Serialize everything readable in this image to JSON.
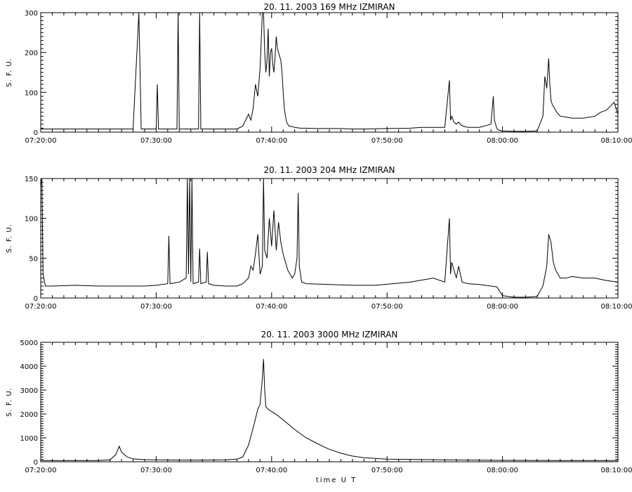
{
  "chart_data": [
    {
      "type": "line",
      "title": "20.  11.  2003    169 MHz    IZMIRAN",
      "ylabel": "S. F. U.",
      "xlabel": "",
      "x_range": [
        "07:20:00",
        "08:10:00"
      ],
      "ylim": [
        0,
        300
      ],
      "y_ticks": [
        0,
        100,
        200,
        300
      ],
      "x_ticks": [
        "07:20:00",
        "07:30:00",
        "07:40:00",
        "07:50:00",
        "08:00:00",
        "08:10:00"
      ],
      "grid": false,
      "series": [
        {
          "x": [
            "07:20:00",
            "07:22:00",
            "07:24:00",
            "07:26:00",
            "07:28:00",
            "07:28:30",
            "07:28:36",
            "07:28:42",
            "07:29:00",
            "07:30:00",
            "07:30:06",
            "07:30:12",
            "07:31:00",
            "07:31:48",
            "07:31:54",
            "07:32:00",
            "07:33:00",
            "07:33:40",
            "07:33:46",
            "07:33:52",
            "07:35:00",
            "07:36:00",
            "07:37:00",
            "07:37:30",
            "07:38:00",
            "07:38:12",
            "07:38:24",
            "07:38:36",
            "07:38:48",
            "07:39:00",
            "07:39:06",
            "07:39:12",
            "07:39:18",
            "07:39:24",
            "07:39:30",
            "07:39:36",
            "07:39:42",
            "07:39:48",
            "07:39:54",
            "07:40:00",
            "07:40:06",
            "07:40:12",
            "07:40:18",
            "07:40:24",
            "07:40:30",
            "07:40:36",
            "07:40:42",
            "07:40:48",
            "07:40:54",
            "07:41:00",
            "07:41:06",
            "07:41:12",
            "07:41:18",
            "07:41:24",
            "07:41:30",
            "07:41:36",
            "07:41:42",
            "07:41:48",
            "07:42:00",
            "07:42:30",
            "07:43:00",
            "07:44:00",
            "07:45:00",
            "07:46:00",
            "07:47:00",
            "07:48:00",
            "07:50:00",
            "07:52:00",
            "07:53:00",
            "07:55:00",
            "07:55:24",
            "07:55:30",
            "07:55:36",
            "07:55:48",
            "07:56:00",
            "07:56:12",
            "07:56:24",
            "07:56:36",
            "07:57:00",
            "07:58:00",
            "07:59:00",
            "07:59:12",
            "07:59:18",
            "07:59:30",
            "07:59:40",
            "08:00:00",
            "08:01:00",
            "08:02:00",
            "08:03:00",
            "08:03:30",
            "08:03:40",
            "08:03:50",
            "08:04:00",
            "08:04:06",
            "08:04:12",
            "08:04:18",
            "08:04:30",
            "08:04:42",
            "08:05:00",
            "08:05:30",
            "08:06:00",
            "08:07:00",
            "08:08:00",
            "08:08:30",
            "08:09:00",
            "08:09:20",
            "08:09:40",
            "08:10:00"
          ],
          "y": [
            8,
            8,
            8,
            8,
            8,
            300,
            160,
            8,
            8,
            8,
            120,
            8,
            8,
            8,
            300,
            8,
            8,
            8,
            300,
            8,
            8,
            8,
            8,
            15,
            45,
            30,
            60,
            120,
            90,
            160,
            230,
            300,
            300,
            200,
            150,
            180,
            260,
            140,
            200,
            210,
            170,
            150,
            190,
            240,
            210,
            200,
            190,
            180,
            150,
            100,
            60,
            40,
            25,
            20,
            15,
            15,
            14,
            14,
            12,
            10,
            10,
            9,
            9,
            9,
            8,
            8,
            9,
            10,
            12,
            12,
            130,
            30,
            40,
            25,
            20,
            25,
            18,
            15,
            12,
            12,
            20,
            90,
            30,
            10,
            5,
            3,
            2,
            2,
            3,
            40,
            140,
            110,
            185,
            120,
            80,
            70,
            60,
            50,
            40,
            38,
            35,
            35,
            40,
            50,
            55,
            65,
            75,
            45
          ]
        }
      ]
    },
    {
      "type": "line",
      "title": "20.  11.  2003    204 MHz    IZMIRAN",
      "ylabel": "S. F. U.",
      "xlabel": "",
      "x_range": [
        "07:20:00",
        "08:10:00"
      ],
      "ylim": [
        0,
        150
      ],
      "y_ticks": [
        0,
        50,
        100,
        150
      ],
      "x_ticks": [
        "07:20:00",
        "07:30:00",
        "07:40:00",
        "07:50:00",
        "08:00:00",
        "08:10:00"
      ],
      "grid": false,
      "series": [
        {
          "x": [
            "07:20:00",
            "07:20:06",
            "07:20:12",
            "07:20:24",
            "07:21:00",
            "07:23:00",
            "07:25:00",
            "07:27:00",
            "07:29:00",
            "07:30:00",
            "07:31:00",
            "07:31:06",
            "07:31:12",
            "07:32:00",
            "07:32:36",
            "07:32:42",
            "07:32:48",
            "07:32:54",
            "07:33:00",
            "07:33:06",
            "07:33:12",
            "07:33:40",
            "07:33:46",
            "07:33:52",
            "07:34:20",
            "07:34:26",
            "07:34:32",
            "07:35:00",
            "07:36:00",
            "07:37:00",
            "07:37:30",
            "07:38:00",
            "07:38:12",
            "07:38:24",
            "07:38:36",
            "07:38:48",
            "07:39:00",
            "07:39:12",
            "07:39:18",
            "07:39:24",
            "07:39:36",
            "07:39:48",
            "07:40:00",
            "07:40:12",
            "07:40:24",
            "07:40:36",
            "07:40:48",
            "07:41:00",
            "07:41:12",
            "07:41:24",
            "07:41:36",
            "07:41:48",
            "07:42:00",
            "07:42:12",
            "07:42:18",
            "07:42:24",
            "07:42:36",
            "07:43:00",
            "07:45:00",
            "07:47:00",
            "07:49:00",
            "07:52:00",
            "07:54:00",
            "07:55:00",
            "07:55:24",
            "07:55:30",
            "07:55:36",
            "07:56:00",
            "07:56:12",
            "07:56:30",
            "07:57:00",
            "07:58:00",
            "07:59:00",
            "07:59:30",
            "08:00:00",
            "08:01:00",
            "08:02:00",
            "08:03:00",
            "08:03:30",
            "08:03:50",
            "08:04:00",
            "08:04:12",
            "08:04:24",
            "08:04:36",
            "08:05:00",
            "08:05:30",
            "08:06:00",
            "08:07:00",
            "08:08:00",
            "08:09:00",
            "08:10:00"
          ],
          "y": [
            140,
            150,
            30,
            15,
            15,
            16,
            15,
            15,
            15,
            16,
            18,
            78,
            18,
            20,
            25,
            150,
            30,
            150,
            20,
            150,
            18,
            20,
            62,
            18,
            20,
            58,
            18,
            16,
            15,
            15,
            18,
            25,
            40,
            35,
            55,
            80,
            30,
            40,
            150,
            60,
            50,
            100,
            65,
            110,
            60,
            95,
            70,
            55,
            45,
            35,
            30,
            25,
            30,
            50,
            132,
            40,
            20,
            18,
            17,
            16,
            16,
            20,
            25,
            20,
            100,
            30,
            45,
            25,
            40,
            20,
            18,
            17,
            15,
            14,
            3,
            1,
            1,
            2,
            15,
            40,
            80,
            70,
            45,
            35,
            25,
            25,
            27,
            25,
            25,
            22,
            20
          ]
        }
      ]
    },
    {
      "type": "line",
      "title": "20.  11.  2003    3000 MHz    IZMIRAN",
      "ylabel": "S. F. U.",
      "xlabel": "time  U T",
      "x_range": [
        "07:20:00",
        "08:10:00"
      ],
      "ylim": [
        0,
        5000
      ],
      "y_ticks": [
        0,
        1000,
        2000,
        3000,
        4000,
        5000
      ],
      "x_ticks": [
        "07:20:00",
        "07:30:00",
        "07:40:00",
        "07:50:00",
        "08:00:00",
        "08:10:00"
      ],
      "grid": false,
      "series": [
        {
          "x": [
            "07:20:00",
            "07:25:00",
            "07:26:00",
            "07:26:30",
            "07:26:48",
            "07:27:00",
            "07:27:30",
            "07:28:00",
            "07:29:00",
            "07:30:00",
            "07:32:00",
            "07:34:00",
            "07:36:00",
            "07:37:00",
            "07:37:30",
            "07:38:00",
            "07:38:30",
            "07:38:48",
            "07:39:00",
            "07:39:12",
            "07:39:18",
            "07:39:24",
            "07:39:30",
            "07:39:42",
            "07:40:00",
            "07:40:30",
            "07:41:00",
            "07:42:00",
            "07:43:00",
            "07:44:00",
            "07:45:00",
            "07:46:00",
            "07:47:00",
            "07:48:00",
            "07:50:00",
            "07:55:00",
            "08:00:00",
            "08:05:00",
            "08:10:00"
          ],
          "y": [
            50,
            50,
            80,
            300,
            650,
            400,
            200,
            120,
            90,
            80,
            70,
            70,
            80,
            110,
            200,
            700,
            1600,
            2200,
            2400,
            3500,
            4300,
            3000,
            2300,
            2200,
            2100,
            1950,
            1750,
            1350,
            1000,
            750,
            520,
            360,
            240,
            170,
            110,
            80,
            60,
            50,
            50
          ]
        }
      ]
    }
  ]
}
